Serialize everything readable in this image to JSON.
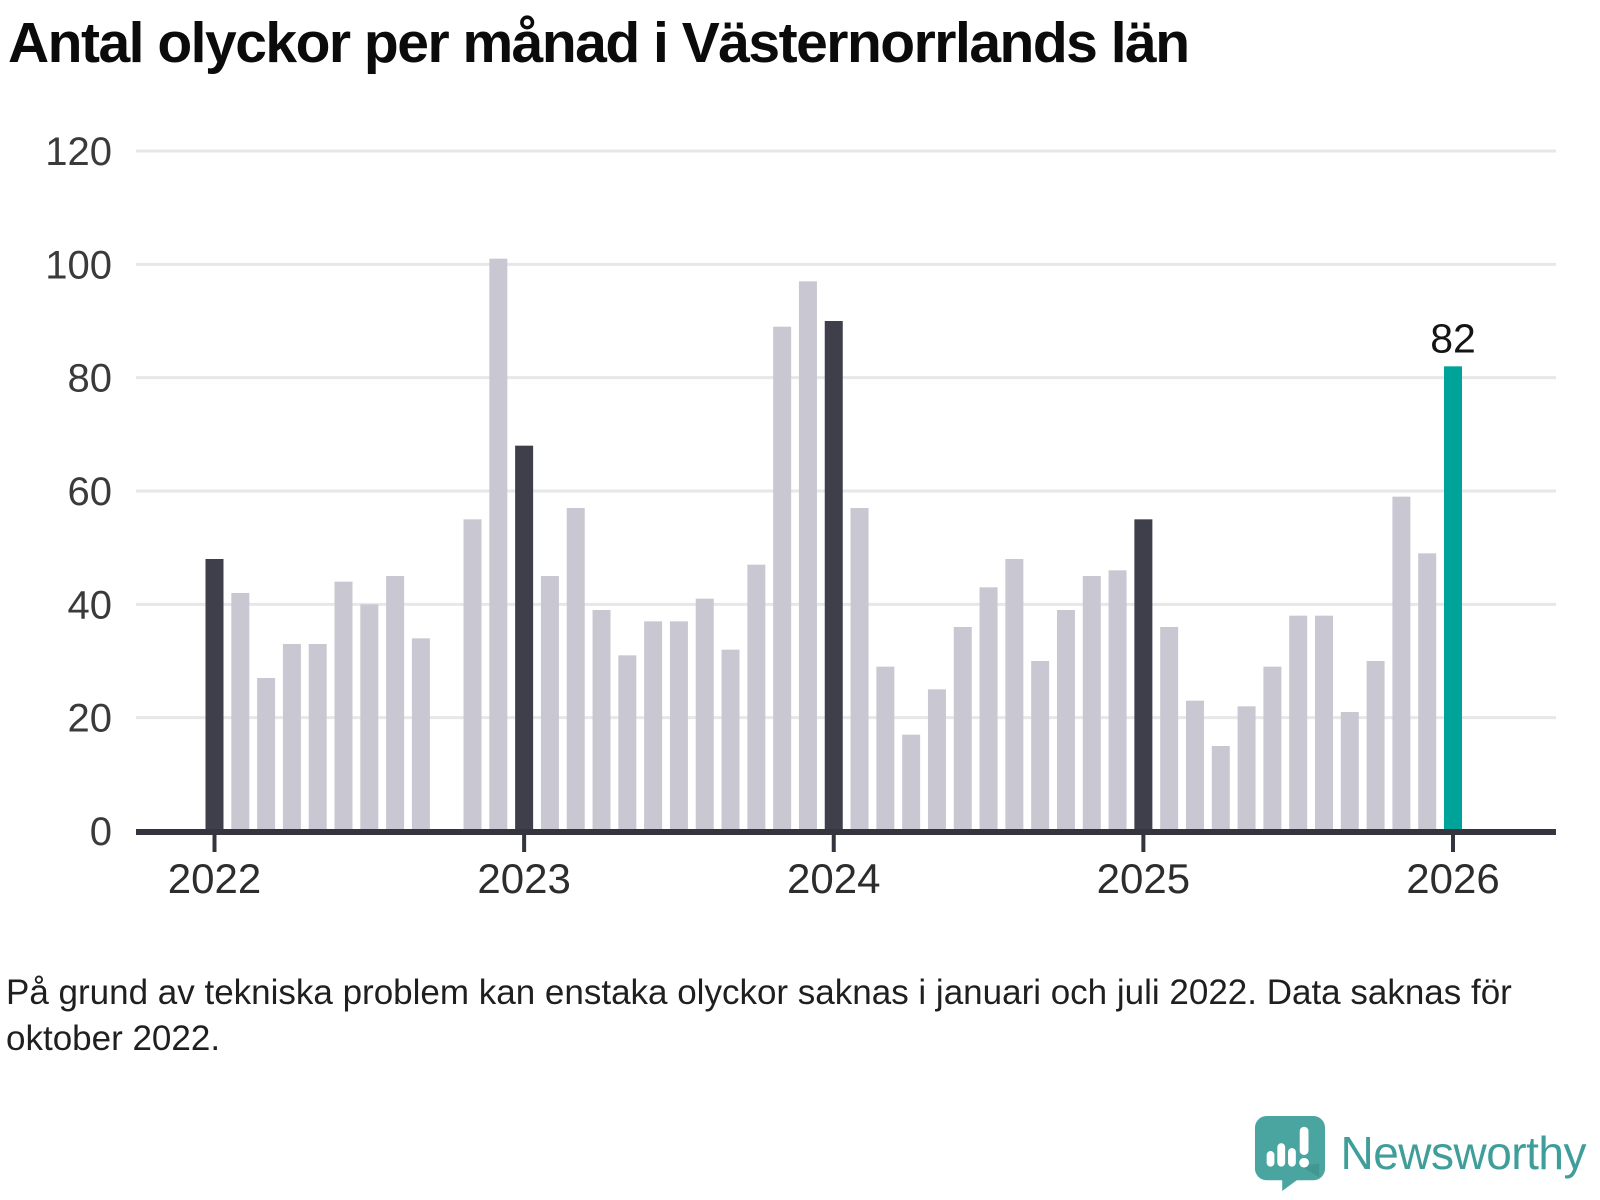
{
  "title": "Antal olyckor per månad i Västernorrlands län",
  "footnote": "På grund av tekniska problem kan enstaka olyckor saknas i januari och juli 2022. Data saknas för oktober 2022.",
  "logo": {
    "name": "Newsworthy"
  },
  "colors": {
    "bar_default": "#c9c8d2",
    "bar_dark": "#3f3f4c",
    "bar_highlight": "#00a39a",
    "gridline": "#e7e7e7",
    "axis": "#35353f",
    "logo_teal": "#4aa5a0",
    "logo_teal_dark": "#3c8d89"
  },
  "chart_data": {
    "type": "bar",
    "title": "Antal olyckor per månad i Västernorrlands län",
    "xlabel": "",
    "ylabel": "",
    "ylim": [
      0,
      120
    ],
    "y_ticks": [
      0,
      20,
      40,
      60,
      80,
      100,
      120
    ],
    "grid": true,
    "x_tick_years": [
      "2022",
      "2023",
      "2024",
      "2025",
      "2026"
    ],
    "missing_months": [
      "2022-10"
    ],
    "annotation": {
      "month": "2026-01",
      "label": "82"
    },
    "series": [
      {
        "name": "Antal olyckor",
        "points": [
          {
            "month": "2022-01",
            "value": 48,
            "emphasis": "dark"
          },
          {
            "month": "2022-02",
            "value": 42
          },
          {
            "month": "2022-03",
            "value": 27
          },
          {
            "month": "2022-04",
            "value": 33
          },
          {
            "month": "2022-05",
            "value": 33
          },
          {
            "month": "2022-06",
            "value": 44
          },
          {
            "month": "2022-07",
            "value": 40
          },
          {
            "month": "2022-08",
            "value": 45
          },
          {
            "month": "2022-09",
            "value": 34
          },
          {
            "month": "2022-11",
            "value": 55
          },
          {
            "month": "2022-12",
            "value": 101
          },
          {
            "month": "2023-01",
            "value": 68,
            "emphasis": "dark"
          },
          {
            "month": "2023-02",
            "value": 45
          },
          {
            "month": "2023-03",
            "value": 57
          },
          {
            "month": "2023-04",
            "value": 39
          },
          {
            "month": "2023-05",
            "value": 31
          },
          {
            "month": "2023-06",
            "value": 37
          },
          {
            "month": "2023-07",
            "value": 37
          },
          {
            "month": "2023-08",
            "value": 41
          },
          {
            "month": "2023-09",
            "value": 32
          },
          {
            "month": "2023-10",
            "value": 47
          },
          {
            "month": "2023-11",
            "value": 89
          },
          {
            "month": "2023-12",
            "value": 97
          },
          {
            "month": "2024-01",
            "value": 90,
            "emphasis": "dark"
          },
          {
            "month": "2024-02",
            "value": 57
          },
          {
            "month": "2024-03",
            "value": 29
          },
          {
            "month": "2024-04",
            "value": 17
          },
          {
            "month": "2024-05",
            "value": 25
          },
          {
            "month": "2024-06",
            "value": 36
          },
          {
            "month": "2024-07",
            "value": 43
          },
          {
            "month": "2024-08",
            "value": 48
          },
          {
            "month": "2024-09",
            "value": 30
          },
          {
            "month": "2024-10",
            "value": 39
          },
          {
            "month": "2024-11",
            "value": 45
          },
          {
            "month": "2024-12",
            "value": 46
          },
          {
            "month": "2025-01",
            "value": 55,
            "emphasis": "dark"
          },
          {
            "month": "2025-02",
            "value": 36
          },
          {
            "month": "2025-03",
            "value": 23
          },
          {
            "month": "2025-04",
            "value": 15
          },
          {
            "month": "2025-05",
            "value": 22
          },
          {
            "month": "2025-06",
            "value": 29
          },
          {
            "month": "2025-07",
            "value": 38
          },
          {
            "month": "2025-08",
            "value": 38
          },
          {
            "month": "2025-09",
            "value": 21
          },
          {
            "month": "2025-10",
            "value": 30
          },
          {
            "month": "2025-11",
            "value": 59
          },
          {
            "month": "2025-12",
            "value": 49
          },
          {
            "month": "2026-01",
            "value": 82,
            "emphasis": "highlight"
          }
        ]
      }
    ]
  }
}
